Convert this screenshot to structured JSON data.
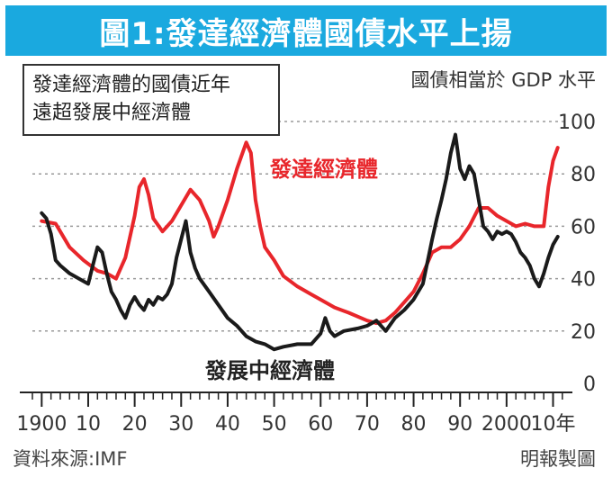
{
  "title": "圖1:發達經濟體國債水平上揚",
  "chart_data": {
    "type": "line",
    "title": "圖1:發達經濟體國債水平上揚",
    "subtitle_lines": [
      "發達經濟體的國債近年",
      "遠超發展中經濟體"
    ],
    "ylabel": "國債相當於 GDP 水平",
    "xlabel": "",
    "ylim": [
      0,
      100
    ],
    "xlim": [
      1898,
      2013
    ],
    "y_ticks": [
      0,
      20,
      40,
      60,
      80,
      100
    ],
    "x_tick_labels": [
      {
        "x": 1900,
        "label": "1900"
      },
      {
        "x": 1910,
        "label": "10"
      },
      {
        "x": 1920,
        "label": "20"
      },
      {
        "x": 1930,
        "label": "30"
      },
      {
        "x": 1940,
        "label": "40"
      },
      {
        "x": 1950,
        "label": "50"
      },
      {
        "x": 1960,
        "label": "60"
      },
      {
        "x": 1970,
        "label": "70"
      },
      {
        "x": 1980,
        "label": "80"
      },
      {
        "x": 1990,
        "label": "90"
      },
      {
        "x": 2000,
        "label": "2000"
      },
      {
        "x": 2010,
        "label": "10年"
      }
    ],
    "grid": true,
    "series": [
      {
        "name": "發達經濟體",
        "color": "#e8262b",
        "x": [
          1900,
          1903,
          1906,
          1909,
          1912,
          1914,
          1916,
          1918,
          1920,
          1921,
          1922,
          1923,
          1924,
          1926,
          1928,
          1930,
          1932,
          1934,
          1936,
          1937,
          1938,
          1940,
          1942,
          1944,
          1945,
          1946,
          1947,
          1948,
          1950,
          1952,
          1955,
          1958,
          1960,
          1963,
          1966,
          1970,
          1972,
          1974,
          1976,
          1978,
          1980,
          1982,
          1984,
          1986,
          1988,
          1990,
          1992,
          1994,
          1996,
          1998,
          2000,
          2002,
          2004,
          2006,
          2008,
          2009,
          2010,
          2011
        ],
        "values": [
          62,
          61,
          52,
          47,
          43,
          42,
          40,
          48,
          64,
          75,
          78,
          72,
          63,
          58,
          62,
          68,
          74,
          70,
          62,
          56,
          60,
          70,
          82,
          92,
          88,
          70,
          60,
          52,
          47,
          41,
          37,
          34,
          32,
          29,
          27,
          24,
          23,
          24,
          27,
          31,
          35,
          42,
          50,
          52,
          52,
          55,
          60,
          67,
          67,
          64,
          62,
          60,
          61,
          60,
          60,
          75,
          85,
          90
        ]
      },
      {
        "name": "發展中經濟體",
        "color": "#1a1a1a",
        "x": [
          1900,
          1901,
          1902,
          1903,
          1904,
          1906,
          1908,
          1910,
          1911,
          1912,
          1913,
          1914,
          1915,
          1916,
          1917,
          1918,
          1919,
          1920,
          1921,
          1922,
          1923,
          1924,
          1925,
          1926,
          1927,
          1928,
          1929,
          1930,
          1931,
          1932,
          1933,
          1934,
          1936,
          1938,
          1940,
          1942,
          1944,
          1946,
          1948,
          1950,
          1952,
          1955,
          1958,
          1960,
          1961,
          1962,
          1963,
          1965,
          1968,
          1970,
          1972,
          1974,
          1976,
          1978,
          1980,
          1982,
          1984,
          1985,
          1986,
          1987,
          1988,
          1989,
          1990,
          1991,
          1992,
          1993,
          1994,
          1995,
          1996,
          1997,
          1998,
          1999,
          2000,
          2001,
          2002,
          2003,
          2004,
          2005,
          2006,
          2007,
          2008,
          2009,
          2010,
          2011
        ],
        "values": [
          65,
          63,
          57,
          47,
          45,
          42,
          40,
          38,
          45,
          52,
          50,
          42,
          35,
          32,
          28,
          25,
          30,
          33,
          30,
          28,
          32,
          30,
          33,
          32,
          34,
          38,
          48,
          55,
          62,
          50,
          44,
          40,
          35,
          30,
          25,
          22,
          18,
          16,
          15,
          13,
          14,
          15,
          15,
          19,
          25,
          20,
          18,
          20,
          21,
          22,
          24,
          20,
          25,
          28,
          32,
          38,
          55,
          63,
          70,
          78,
          88,
          95,
          82,
          78,
          83,
          80,
          70,
          60,
          58,
          55,
          58,
          57,
          58,
          57,
          54,
          50,
          48,
          45,
          40,
          37,
          42,
          48,
          53,
          56
        ]
      }
    ],
    "annotations": {
      "developed_label": "發達經濟體",
      "developing_label": "發展中經濟體"
    }
  },
  "footer": {
    "source": "資料來源:IMF",
    "credit": "明報製圖"
  }
}
